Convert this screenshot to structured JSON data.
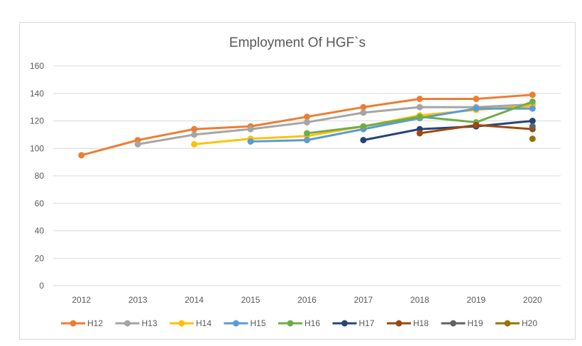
{
  "chart_data": {
    "type": "line",
    "title": "Employment Of HGF`s",
    "xlabel": "",
    "ylabel": "",
    "categories": [
      "2012",
      "2013",
      "2014",
      "2015",
      "2016",
      "2017",
      "2018",
      "2019",
      "2020"
    ],
    "ylim": [
      0,
      160
    ],
    "yticks": [
      0,
      20,
      40,
      60,
      80,
      100,
      120,
      140,
      160
    ],
    "grid": true,
    "legend_position": "bottom",
    "series": [
      {
        "name": "H12",
        "color": "#ED7D31",
        "values": [
          95,
          106,
          114,
          116,
          123,
          130,
          136,
          136,
          139
        ]
      },
      {
        "name": "H13",
        "color": "#A5A5A5",
        "values": [
          null,
          103,
          110,
          114,
          119,
          126,
          130,
          130,
          132
        ]
      },
      {
        "name": "H14",
        "color": "#FFC000",
        "values": [
          null,
          null,
          103,
          107,
          109,
          116,
          124,
          128,
          131
        ]
      },
      {
        "name": "H15",
        "color": "#5B9BD5",
        "values": [
          null,
          null,
          null,
          105,
          106,
          114,
          122,
          129,
          129
        ]
      },
      {
        "name": "H16",
        "color": "#70AD47",
        "values": [
          null,
          null,
          null,
          null,
          111,
          116,
          123,
          119,
          134
        ]
      },
      {
        "name": "H17",
        "color": "#264478",
        "values": [
          null,
          null,
          null,
          null,
          null,
          106,
          114,
          116,
          120
        ]
      },
      {
        "name": "H18",
        "color": "#9E480E",
        "values": [
          null,
          null,
          null,
          null,
          null,
          null,
          111,
          117,
          114
        ]
      },
      {
        "name": "H19",
        "color": "#636363",
        "values": [
          null,
          null,
          null,
          null,
          null,
          null,
          null,
          null,
          116
        ]
      },
      {
        "name": "H20",
        "color": "#997300",
        "values": [
          null,
          null,
          null,
          null,
          null,
          null,
          null,
          null,
          107
        ]
      }
    ]
  }
}
